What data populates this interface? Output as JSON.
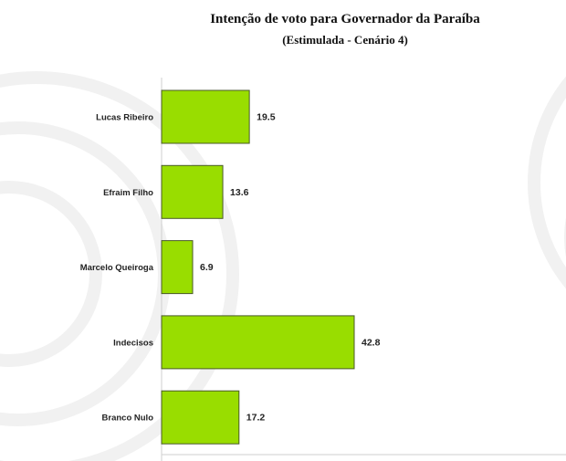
{
  "chart_data": {
    "type": "bar",
    "orientation": "horizontal",
    "title": "Intenção de voto para Governador da Paraíba",
    "subtitle": "(Estimulada - Cenário 4)",
    "categories": [
      "Lucas Ribeiro",
      "Efraim Filho",
      "Marcelo Queiroga",
      "Indecisos",
      "Branco Nulo"
    ],
    "values": [
      19.5,
      13.6,
      6.9,
      42.8,
      17.2
    ],
    "value_labels": [
      "19.5",
      "13.6",
      "6.9",
      "42.8",
      "17.2"
    ],
    "xlim": [
      0,
      90
    ],
    "grid": false,
    "legend": "none",
    "colors": {
      "bar_fill": "#99dd00",
      "bar_stroke": "#4a5a2a",
      "axis": "#cfcfcf",
      "watermark": "#f2f2f2"
    }
  }
}
